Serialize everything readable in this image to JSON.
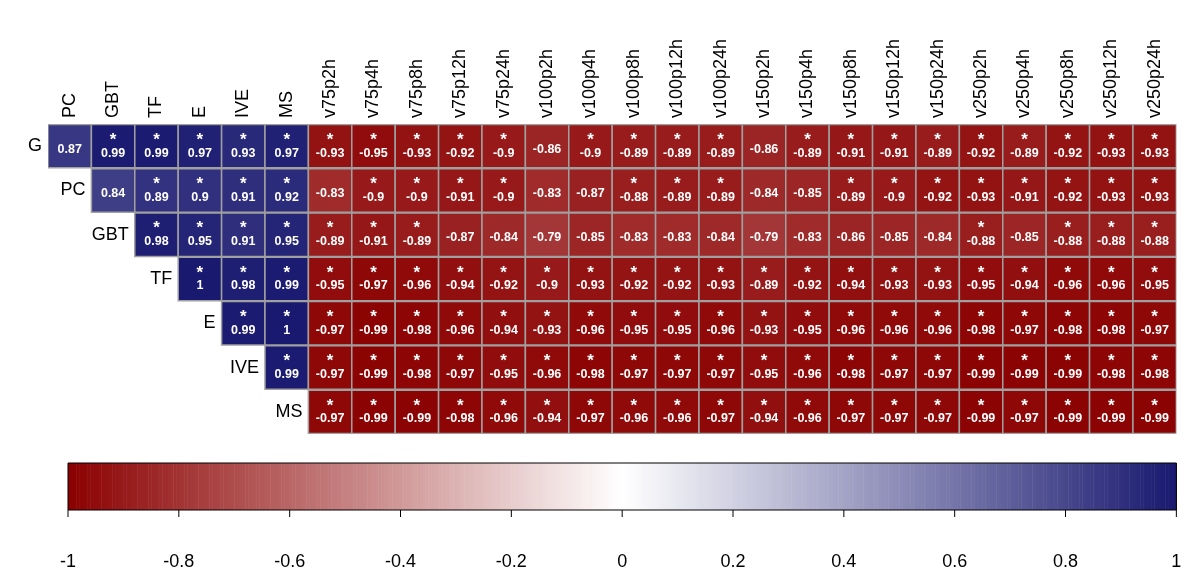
{
  "chart_data": {
    "type": "heatmap",
    "categories": [
      "PC",
      "GBT",
      "TF",
      "E",
      "IVE",
      "MS",
      "v75p2h",
      "v75p4h",
      "v75p8h",
      "v75p12h",
      "v75p24h",
      "v100p2h",
      "v100p4h",
      "v100p8h",
      "v100p12h",
      "v100p24h",
      "v150p2h",
      "v150p4h",
      "v150p8h",
      "v150p12h",
      "v150p24h",
      "v250p2h",
      "v250p4h",
      "v250p8h",
      "v250p12h",
      "v250p24h"
    ],
    "y_categories": [
      "G",
      "PC",
      "GBT",
      "TF",
      "E",
      "IVE",
      "MS"
    ],
    "cells": [
      [
        0.87,
        0.99,
        0.99,
        0.97,
        0.93,
        0.97,
        -0.93,
        -0.95,
        -0.93,
        -0.92,
        -0.9,
        -0.86,
        -0.9,
        -0.89,
        -0.89,
        -0.89,
        -0.86,
        -0.89,
        -0.91,
        -0.91,
        -0.89,
        -0.92,
        -0.89,
        -0.92,
        -0.93,
        -0.93
      ],
      [
        null,
        0.84,
        0.89,
        0.9,
        0.91,
        0.92,
        -0.83,
        -0.9,
        -0.9,
        -0.91,
        -0.9,
        -0.83,
        -0.87,
        -0.88,
        -0.89,
        -0.89,
        -0.84,
        -0.85,
        -0.89,
        -0.9,
        -0.92,
        -0.93,
        -0.91,
        -0.92,
        -0.93,
        -0.93
      ],
      [
        null,
        null,
        0.98,
        0.95,
        0.91,
        0.95,
        -0.89,
        -0.91,
        -0.89,
        -0.87,
        -0.84,
        -0.79,
        -0.85,
        -0.83,
        -0.83,
        -0.84,
        -0.79,
        -0.83,
        -0.86,
        -0.85,
        -0.84,
        -0.88,
        -0.85,
        -0.88,
        -0.88,
        -0.88
      ],
      [
        null,
        null,
        null,
        1,
        0.98,
        0.99,
        -0.95,
        -0.97,
        -0.96,
        -0.94,
        -0.92,
        -0.9,
        -0.93,
        -0.92,
        -0.92,
        -0.93,
        -0.89,
        -0.92,
        -0.94,
        -0.93,
        -0.93,
        -0.95,
        -0.94,
        -0.96,
        -0.96,
        -0.95
      ],
      [
        null,
        null,
        null,
        null,
        0.99,
        1,
        -0.97,
        -0.99,
        -0.98,
        -0.96,
        -0.94,
        -0.93,
        -0.96,
        -0.95,
        -0.95,
        -0.96,
        -0.93,
        -0.95,
        -0.96,
        -0.96,
        -0.96,
        -0.98,
        -0.97,
        -0.98,
        -0.98,
        -0.97
      ],
      [
        null,
        null,
        null,
        null,
        null,
        0.99,
        -0.97,
        -0.99,
        -0.98,
        -0.97,
        -0.95,
        -0.96,
        -0.98,
        -0.97,
        -0.97,
        -0.97,
        -0.95,
        -0.96,
        -0.98,
        -0.97,
        -0.97,
        -0.99,
        -0.99,
        -0.99,
        -0.98,
        -0.98
      ],
      [
        null,
        null,
        null,
        null,
        null,
        null,
        -0.97,
        -0.99,
        -0.99,
        -0.98,
        -0.96,
        -0.94,
        -0.97,
        -0.96,
        -0.96,
        -0.97,
        -0.94,
        -0.96,
        -0.97,
        -0.97,
        -0.97,
        -0.99,
        -0.97,
        -0.99,
        -0.99,
        -0.99
      ]
    ],
    "cell_labels": [
      [
        "0.87",
        "*\n0.99",
        "*\n0.99",
        "*\n0.97",
        "*\n0.93",
        "*\n0.97",
        "*\n-0.93",
        "*\n-0.95",
        "*\n-0.93",
        "*\n-0.92",
        "*\n-0.9",
        "-0.86",
        "*\n-0.9",
        "*\n-0.89",
        "*\n-0.89",
        "*\n-0.89",
        "-0.86",
        "*\n-0.89",
        "*\n-0.91",
        "*\n-0.91",
        "*\n-0.89",
        "*\n-0.92",
        "*\n-0.89",
        "*\n-0.92",
        "*\n-0.93",
        "*\n-0.93"
      ],
      [
        null,
        "0.84",
        "*\n0.89",
        "*\n0.9",
        "*\n0.91",
        "*\n0.92",
        "-0.83",
        "*\n-0.9",
        "*\n-0.9",
        "*\n-0.91",
        "*\n-0.9",
        "-0.83",
        "-0.87",
        "*\n-0.88",
        "*\n-0.89",
        "*\n-0.89",
        "-0.84",
        "-0.85",
        "*\n-0.89",
        "*\n-0.9",
        "*\n-0.92",
        "*\n-0.93",
        "*\n-0.91",
        "*\n-0.92",
        "*\n-0.93",
        "*\n-0.93"
      ],
      [
        null,
        null,
        "*\n0.98",
        "*\n0.95",
        "*\n0.91",
        "*\n0.95",
        "*\n-0.89",
        "*\n-0.91",
        "*\n-0.89",
        "-0.87",
        "-0.84",
        "-0.79",
        "-0.85",
        "-0.83",
        "-0.83",
        "-0.84",
        "-0.79",
        "-0.83",
        "-0.86",
        "-0.85",
        "-0.84",
        "*\n-0.88",
        "-0.85",
        "*\n-0.88",
        "*\n-0.88",
        "*\n-0.88"
      ],
      [
        null,
        null,
        null,
        "*\n1",
        "*\n0.98",
        "*\n0.99",
        "*\n-0.95",
        "*\n-0.97",
        "*\n-0.96",
        "*\n-0.94",
        "*\n-0.92",
        "*\n-0.9",
        "*\n-0.93",
        "*\n-0.92",
        "*\n-0.92",
        "*\n-0.93",
        "*\n-0.89",
        "*\n-0.92",
        "*\n-0.94",
        "*\n-0.93",
        "*\n-0.93",
        "*\n-0.95",
        "*\n-0.94",
        "*\n-0.96",
        "*\n-0.96",
        "*\n-0.95"
      ],
      [
        null,
        null,
        null,
        null,
        "*\n0.99",
        "*\n1",
        "*\n-0.97",
        "*\n-0.99",
        "*\n-0.98",
        "*\n-0.96",
        "*\n-0.94",
        "*\n-0.93",
        "*\n-0.96",
        "*\n-0.95",
        "*\n-0.95",
        "*\n-0.96",
        "*\n-0.93",
        "*\n-0.95",
        "*\n-0.96",
        "*\n-0.96",
        "*\n-0.96",
        "*\n-0.98",
        "*\n-0.97",
        "*\n-0.98",
        "*\n-0.98",
        "*\n-0.97"
      ],
      [
        null,
        null,
        null,
        null,
        null,
        "*\n0.99",
        "*\n-0.97",
        "*\n-0.99",
        "*\n-0.98",
        "*\n-0.97",
        "*\n-0.95",
        "*\n-0.96",
        "*\n-0.98",
        "*\n-0.97",
        "*\n-0.97",
        "*\n-0.97",
        "*\n-0.95",
        "*\n-0.96",
        "*\n-0.98",
        "*\n-0.97",
        "*\n-0.97",
        "*\n-0.99",
        "*\n-0.99",
        "*\n-0.99",
        "*\n-0.98",
        "*\n-0.98"
      ],
      [
        null,
        null,
        null,
        null,
        null,
        null,
        "*\n-0.97",
        "*\n-0.99",
        "*\n-0.99",
        "*\n-0.98",
        "*\n-0.96",
        "*\n-0.94",
        "*\n-0.97",
        "*\n-0.96",
        "*\n-0.96",
        "*\n-0.97",
        "*\n-0.94",
        "*\n-0.96",
        "*\n-0.97",
        "*\n-0.97",
        "*\n-0.97",
        "*\n-0.99",
        "*\n-0.97",
        "*\n-0.99",
        "*\n-0.99",
        "*\n-0.99"
      ]
    ],
    "colors": [
      "#8b0000",
      "#ffffff",
      "#191970"
    ],
    "clim": [
      -1,
      1
    ],
    "cticks": [
      -1,
      -0.8,
      -0.6,
      -0.4,
      -0.2,
      0,
      0.2,
      0.4,
      0.6,
      0.8,
      1
    ]
  }
}
